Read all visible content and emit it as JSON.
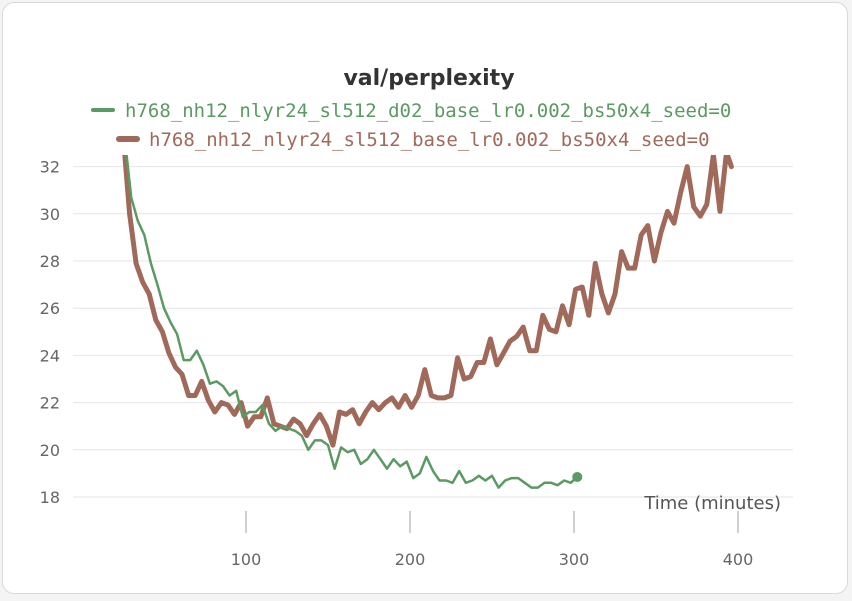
{
  "chart_data": {
    "type": "line",
    "title": "val/perplexity",
    "xlabel": "Time (minutes)",
    "ylabel": "",
    "xlim": [
      0,
      430
    ],
    "ylim": [
      17.5,
      32.6
    ],
    "xticks": [
      100,
      200,
      300,
      400
    ],
    "yticks": [
      18,
      20,
      22,
      24,
      26,
      28,
      30,
      32
    ],
    "grid": true,
    "legend_position": "top",
    "series": [
      {
        "name": "h768_nh12_nlyr24_sl512_d02_base_lr0.002_bs50x4_seed=0",
        "color": "#5b9a63",
        "endpoint_marker": true,
        "points": [
          [
            27,
            32.6
          ],
          [
            30,
            30.7
          ],
          [
            34,
            29.7
          ],
          [
            38,
            29.1
          ],
          [
            42,
            27.9
          ],
          [
            46,
            27.0
          ],
          [
            50,
            26.0
          ],
          [
            54,
            25.4
          ],
          [
            58,
            24.9
          ],
          [
            62,
            23.8
          ],
          [
            66,
            23.8
          ],
          [
            70,
            24.2
          ],
          [
            74,
            23.6
          ],
          [
            78,
            22.8
          ],
          [
            82,
            22.9
          ],
          [
            86,
            22.7
          ],
          [
            90,
            22.3
          ],
          [
            94,
            22.5
          ],
          [
            98,
            21.4
          ],
          [
            102,
            21.6
          ],
          [
            106,
            21.6
          ],
          [
            110,
            21.9
          ],
          [
            114,
            21.1
          ],
          [
            118,
            20.8
          ],
          [
            122,
            21.0
          ],
          [
            126,
            20.9
          ],
          [
            130,
            20.8
          ],
          [
            134,
            20.6
          ],
          [
            138,
            20.0
          ],
          [
            142,
            20.4
          ],
          [
            146,
            20.4
          ],
          [
            150,
            20.2
          ],
          [
            154,
            19.2
          ],
          [
            158,
            20.1
          ],
          [
            162,
            19.9
          ],
          [
            166,
            20.0
          ],
          [
            170,
            19.4
          ],
          [
            174,
            19.6
          ],
          [
            178,
            20.0
          ],
          [
            182,
            19.6
          ],
          [
            186,
            19.2
          ],
          [
            190,
            19.6
          ],
          [
            194,
            19.3
          ],
          [
            198,
            19.5
          ],
          [
            202,
            18.8
          ],
          [
            206,
            19.0
          ],
          [
            210,
            19.7
          ],
          [
            214,
            19.1
          ],
          [
            218,
            18.7
          ],
          [
            222,
            18.7
          ],
          [
            226,
            18.6
          ],
          [
            230,
            19.1
          ],
          [
            234,
            18.6
          ],
          [
            238,
            18.7
          ],
          [
            242,
            18.9
          ],
          [
            246,
            18.7
          ],
          [
            250,
            18.9
          ],
          [
            254,
            18.4
          ],
          [
            258,
            18.7
          ],
          [
            262,
            18.8
          ],
          [
            266,
            18.8
          ],
          [
            270,
            18.6
          ],
          [
            274,
            18.4
          ],
          [
            278,
            18.4
          ],
          [
            282,
            18.6
          ],
          [
            286,
            18.6
          ],
          [
            290,
            18.5
          ],
          [
            294,
            18.7
          ],
          [
            298,
            18.6
          ],
          [
            302,
            18.85
          ]
        ]
      },
      {
        "name": "h768_nh12_nlyr24_sl512_base_lr0.002_bs50x4_seed=0",
        "color": "#a0695a",
        "endpoint_marker": false,
        "points": [
          [
            26,
            32.6
          ],
          [
            29,
            30.0
          ],
          [
            33,
            27.9
          ],
          [
            37,
            27.1
          ],
          [
            41,
            26.6
          ],
          [
            45,
            25.5
          ],
          [
            49,
            25.0
          ],
          [
            53,
            24.1
          ],
          [
            57,
            23.5
          ],
          [
            61,
            23.2
          ],
          [
            65,
            22.3
          ],
          [
            69,
            22.3
          ],
          [
            73,
            22.9
          ],
          [
            77,
            22.1
          ],
          [
            81,
            21.6
          ],
          [
            85,
            22.0
          ],
          [
            89,
            21.9
          ],
          [
            93,
            21.5
          ],
          [
            97,
            22.0
          ],
          [
            101,
            21.0
          ],
          [
            105,
            21.4
          ],
          [
            109,
            21.4
          ],
          [
            113,
            22.2
          ],
          [
            117,
            21.1
          ],
          [
            121,
            21.0
          ],
          [
            125,
            20.9
          ],
          [
            129,
            21.3
          ],
          [
            133,
            21.1
          ],
          [
            137,
            20.6
          ],
          [
            141,
            21.1
          ],
          [
            145,
            21.5
          ],
          [
            149,
            21.0
          ],
          [
            153,
            20.2
          ],
          [
            157,
            21.6
          ],
          [
            161,
            21.5
          ],
          [
            165,
            21.7
          ],
          [
            169,
            21.1
          ],
          [
            173,
            21.6
          ],
          [
            177,
            22.0
          ],
          [
            181,
            21.7
          ],
          [
            185,
            22.0
          ],
          [
            189,
            22.2
          ],
          [
            193,
            21.8
          ],
          [
            197,
            22.3
          ],
          [
            201,
            21.8
          ],
          [
            205,
            22.3
          ],
          [
            209,
            23.4
          ],
          [
            213,
            22.3
          ],
          [
            217,
            22.2
          ],
          [
            221,
            22.2
          ],
          [
            225,
            22.3
          ],
          [
            229,
            23.9
          ],
          [
            233,
            23.0
          ],
          [
            237,
            23.1
          ],
          [
            241,
            23.7
          ],
          [
            245,
            23.7
          ],
          [
            249,
            24.7
          ],
          [
            253,
            23.6
          ],
          [
            257,
            24.1
          ],
          [
            261,
            24.6
          ],
          [
            265,
            24.8
          ],
          [
            269,
            25.2
          ],
          [
            273,
            24.2
          ],
          [
            277,
            24.2
          ],
          [
            281,
            25.7
          ],
          [
            285,
            25.1
          ],
          [
            289,
            25.0
          ],
          [
            293,
            26.1
          ],
          [
            297,
            25.3
          ],
          [
            301,
            26.8
          ],
          [
            305,
            26.9
          ],
          [
            309,
            25.7
          ],
          [
            313,
            27.9
          ],
          [
            317,
            26.6
          ],
          [
            321,
            25.8
          ],
          [
            325,
            26.6
          ],
          [
            329,
            28.4
          ],
          [
            333,
            27.7
          ],
          [
            337,
            27.7
          ],
          [
            341,
            29.1
          ],
          [
            345,
            29.5
          ],
          [
            349,
            28.0
          ],
          [
            353,
            29.2
          ],
          [
            357,
            30.1
          ],
          [
            361,
            29.6
          ],
          [
            365,
            30.9
          ],
          [
            369,
            32.0
          ],
          [
            373,
            30.3
          ],
          [
            377,
            29.9
          ],
          [
            381,
            30.4
          ],
          [
            385,
            32.5
          ],
          [
            389,
            30.1
          ],
          [
            393,
            32.6
          ],
          [
            396,
            32.0
          ]
        ]
      }
    ]
  }
}
